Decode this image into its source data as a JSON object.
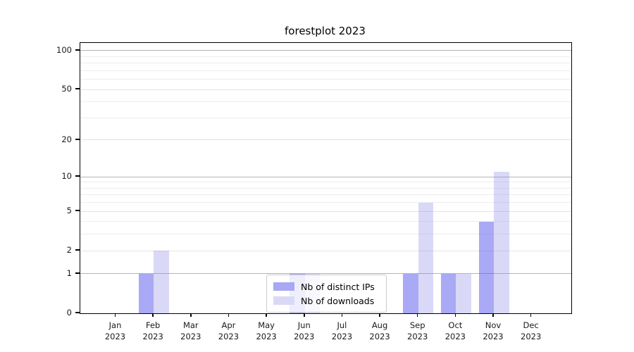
{
  "figure": {
    "background": "#ffffff"
  },
  "chart_data": {
    "type": "bar",
    "title": "forestplot 2023",
    "xlabel": "",
    "ylabel": "",
    "categories": [
      "Jan",
      "Feb",
      "Mar",
      "Apr",
      "May",
      "Jun",
      "Jul",
      "Aug",
      "Sep",
      "Oct",
      "Nov",
      "Dec"
    ],
    "x_tick_year": "2023",
    "series": [
      {
        "name": "Nb of distinct IPs",
        "values": [
          0,
          1,
          0,
          0,
          0,
          1,
          0,
          0,
          1,
          1,
          4,
          0
        ],
        "fill_color": "#5a5aeb",
        "fill_alpha": 0.52,
        "legend_color": "#a8a8f5"
      },
      {
        "name": "Nb of downloads",
        "values": [
          0,
          2,
          0,
          0,
          0,
          1,
          0,
          0,
          6,
          1,
          11,
          0
        ],
        "fill_color": "#8c8ce6",
        "fill_alpha": 0.33,
        "legend_color": "#d9d9f7"
      }
    ],
    "y_scale": "log1p",
    "ylim": [
      0,
      114.4
    ],
    "y_ticks": [
      0,
      1,
      2,
      5,
      10,
      20,
      50,
      100
    ],
    "gridlines": {
      "major_values": [
        1,
        10,
        100
      ],
      "mid_values": [
        2,
        5,
        20,
        50
      ],
      "minor_values": [
        3,
        4,
        6,
        7,
        8,
        9,
        30,
        40,
        60,
        70,
        80,
        90
      ],
      "major_color": "#b3b3b3",
      "mid_color": "#e4e4e4",
      "minor_color": "#ededed"
    },
    "legend": {
      "position": "lower center",
      "background": "#ffffff",
      "border_color": "#cccccc"
    },
    "grid": true
  }
}
